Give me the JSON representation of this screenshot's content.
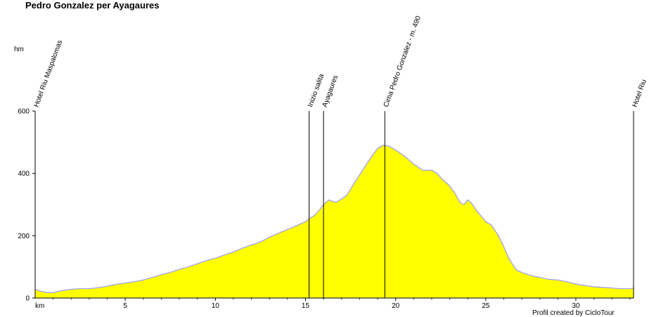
{
  "chart_data": {
    "type": "area",
    "title": "Pedro Gonzalez per Ayagaures",
    "xlabel": "km",
    "ylabel": "hm",
    "xlim": [
      0,
      33.2
    ],
    "ylim": [
      0,
      600
    ],
    "x_ticks": [
      5,
      10,
      15,
      20,
      25,
      30
    ],
    "y_ticks": [
      0,
      200,
      400,
      600
    ],
    "fill_color": "#ffff00",
    "line_color": "#9999ff",
    "series": [
      {
        "x": [
          0,
          0.3,
          0.6,
          1.0,
          1.2,
          1.5,
          2.0,
          2.5,
          3.0,
          3.5,
          4.0,
          4.5,
          5.0,
          5.5,
          6.0,
          6.5,
          7.0,
          7.5,
          8.0,
          8.5,
          9.0,
          9.5,
          10.0,
          10.5,
          11.0,
          11.5,
          12.0,
          12.5,
          13.0,
          13.5,
          14.0,
          14.5,
          15.0,
          15.2,
          15.5,
          15.8,
          16.0,
          16.3,
          16.5,
          16.7,
          17.0,
          17.3,
          17.5,
          18.0,
          18.5,
          19.0,
          19.3,
          19.6,
          20.0,
          20.5,
          21.0,
          21.5,
          22.0,
          22.3,
          22.6,
          23.0,
          23.3,
          23.6,
          23.8,
          24.0,
          24.2,
          24.5,
          25.0,
          25.3,
          25.7,
          26.0,
          26.3,
          26.7,
          27.0,
          27.5,
          28.0,
          28.5,
          29.0,
          29.5,
          30.0,
          30.5,
          31.0,
          31.5,
          32.0,
          32.5,
          33.0,
          33.2
        ],
        "y": [
          28,
          22,
          18,
          17,
          20,
          24,
          28,
          30,
          30,
          33,
          38,
          44,
          48,
          52,
          58,
          66,
          75,
          82,
          92,
          100,
          110,
          120,
          128,
          138,
          148,
          160,
          170,
          180,
          195,
          208,
          220,
          232,
          245,
          255,
          265,
          285,
          300,
          315,
          310,
          307,
          318,
          330,
          350,
          395,
          440,
          480,
          490,
          488,
          475,
          455,
          430,
          410,
          410,
          400,
          380,
          360,
          335,
          305,
          300,
          315,
          305,
          280,
          245,
          235,
          200,
          165,
          125,
          90,
          82,
          72,
          66,
          60,
          58,
          52,
          45,
          40,
          36,
          34,
          32,
          30,
          30,
          32
        ]
      }
    ],
    "waypoints": [
      {
        "km": 0,
        "label": "Hotel Riu Maspalomas"
      },
      {
        "km": 15.2,
        "label": "Inizio salita"
      },
      {
        "km": 16.0,
        "label": "Ayagaures"
      },
      {
        "km": 19.4,
        "label": "Cima Pedro Gonzalez - m. 490"
      },
      {
        "km": 33.2,
        "label": "Hotel Riu"
      }
    ]
  },
  "credit": "Profil created by CicloTour"
}
